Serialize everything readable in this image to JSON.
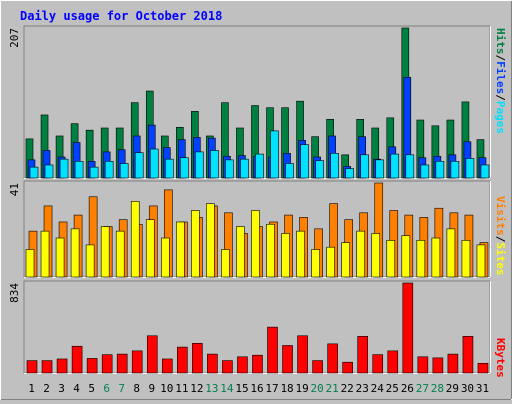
{
  "chart_data": [
    {
      "panel": "hits",
      "type": "bar",
      "title": "Daily usage for October 2018",
      "ymax_label": "207",
      "ylim": [
        0,
        207
      ],
      "categories": [
        "1",
        "2",
        "3",
        "4",
        "5",
        "6",
        "7",
        "8",
        "9",
        "10",
        "11",
        "12",
        "13",
        "14",
        "15",
        "16",
        "17",
        "18",
        "19",
        "20",
        "21",
        "22",
        "23",
        "24",
        "25",
        "26",
        "27",
        "28",
        "29",
        "30",
        "31"
      ],
      "legend": [
        "Pages",
        "Files",
        "Hits"
      ],
      "series": [
        {
          "name": "Hits",
          "color": "#008040",
          "values": [
            54,
            87,
            58,
            75,
            66,
            69,
            69,
            104,
            120,
            58,
            70,
            92,
            58,
            104,
            69,
            100,
            97,
            97,
            106,
            57,
            81,
            32,
            81,
            69,
            83,
            207,
            80,
            72,
            80,
            105,
            53
          ]
        },
        {
          "name": "Files",
          "color": "#0040ff",
          "values": [
            25,
            38,
            29,
            49,
            23,
            36,
            39,
            58,
            73,
            42,
            53,
            56,
            55,
            30,
            31,
            30,
            29,
            34,
            52,
            29,
            58,
            16,
            57,
            26,
            43,
            139,
            28,
            30,
            32,
            50,
            28
          ]
        },
        {
          "name": "Pages",
          "color": "#00e0ff",
          "values": [
            15,
            18,
            26,
            23,
            15,
            23,
            20,
            35,
            40,
            26,
            28,
            36,
            38,
            25,
            26,
            33,
            65,
            20,
            46,
            24,
            34,
            13,
            32,
            25,
            33,
            32,
            18,
            23,
            23,
            27,
            18
          ]
        }
      ]
    },
    {
      "panel": "visits",
      "type": "bar",
      "ymax_label": "41",
      "ylim": [
        0,
        41
      ],
      "legend": [
        "Sites",
        "Visits"
      ],
      "series": [
        {
          "name": "Visits",
          "color": "#ff8000",
          "values": [
            20,
            31,
            24,
            27,
            35,
            22,
            25,
            23,
            31,
            38,
            24,
            26,
            31,
            28,
            19,
            22,
            24,
            27,
            26,
            21,
            32,
            25,
            28,
            41,
            29,
            27,
            26,
            30,
            28,
            27,
            15
          ]
        },
        {
          "name": "Sites",
          "color": "#ffff00",
          "values": [
            12,
            20,
            17,
            21,
            14,
            22,
            20,
            33,
            25,
            17,
            24,
            29,
            32,
            12,
            22,
            29,
            23,
            19,
            20,
            12,
            13,
            15,
            20,
            19,
            16,
            18,
            16,
            17,
            21,
            16,
            14
          ]
        }
      ]
    },
    {
      "panel": "kbytes",
      "type": "bar",
      "ymax_label": "834",
      "ylim": [
        0,
        834
      ],
      "legend": [
        "KBytes"
      ],
      "series": [
        {
          "name": "KBytes",
          "color": "#ff0000",
          "values": [
            115,
            115,
            130,
            248,
            135,
            170,
            175,
            205,
            345,
            130,
            240,
            275,
            175,
            115,
            150,
            165,
            425,
            255,
            345,
            115,
            270,
            100,
            340,
            170,
            205,
            834,
            150,
            140,
            175,
            340,
            90
          ]
        }
      ]
    }
  ],
  "colors": {
    "title": "#0000ff",
    "background": "#c0c0c0",
    "plot_bg": "#c0c0c0",
    "weekend_label": "#00804f",
    "weekday_label": "#000000",
    "weekend_days": [
      "6",
      "7",
      "13",
      "14",
      "20",
      "21",
      "27",
      "28"
    ]
  }
}
